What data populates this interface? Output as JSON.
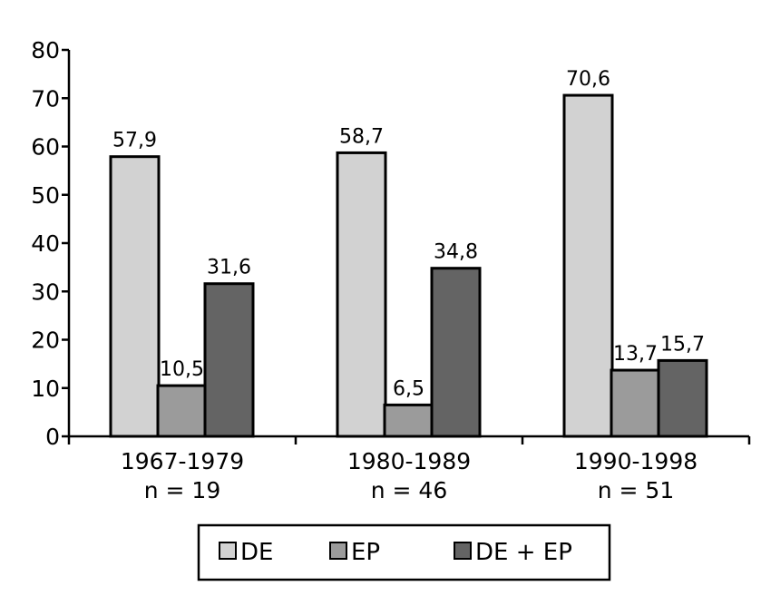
{
  "chart_data": {
    "type": "bar",
    "categories": [
      "1967-1979",
      "1980-1989",
      "1990-1998"
    ],
    "category_sublabels": [
      "n = 19",
      "n = 46",
      "n = 51"
    ],
    "series": [
      {
        "name": "DE",
        "values": [
          57.9,
          58.7,
          70.6
        ],
        "labels": [
          "57,9",
          "58,7",
          "70,6"
        ],
        "color": "#d2d2d2"
      },
      {
        "name": "EP",
        "values": [
          10.5,
          6.5,
          13.7
        ],
        "labels": [
          "10,5",
          "6,5",
          "13,7"
        ],
        "color": "#9b9b9b"
      },
      {
        "name": "DE + EP",
        "values": [
          31.6,
          34.8,
          15.7
        ],
        "labels": [
          "31,6",
          "34,8",
          "15,7"
        ],
        "color": "#646464"
      }
    ],
    "ylim": [
      0,
      80
    ],
    "yticks": [
      0,
      10,
      20,
      30,
      40,
      50,
      60,
      70,
      80
    ],
    "legend_position": "bottom-center",
    "grid": false
  }
}
